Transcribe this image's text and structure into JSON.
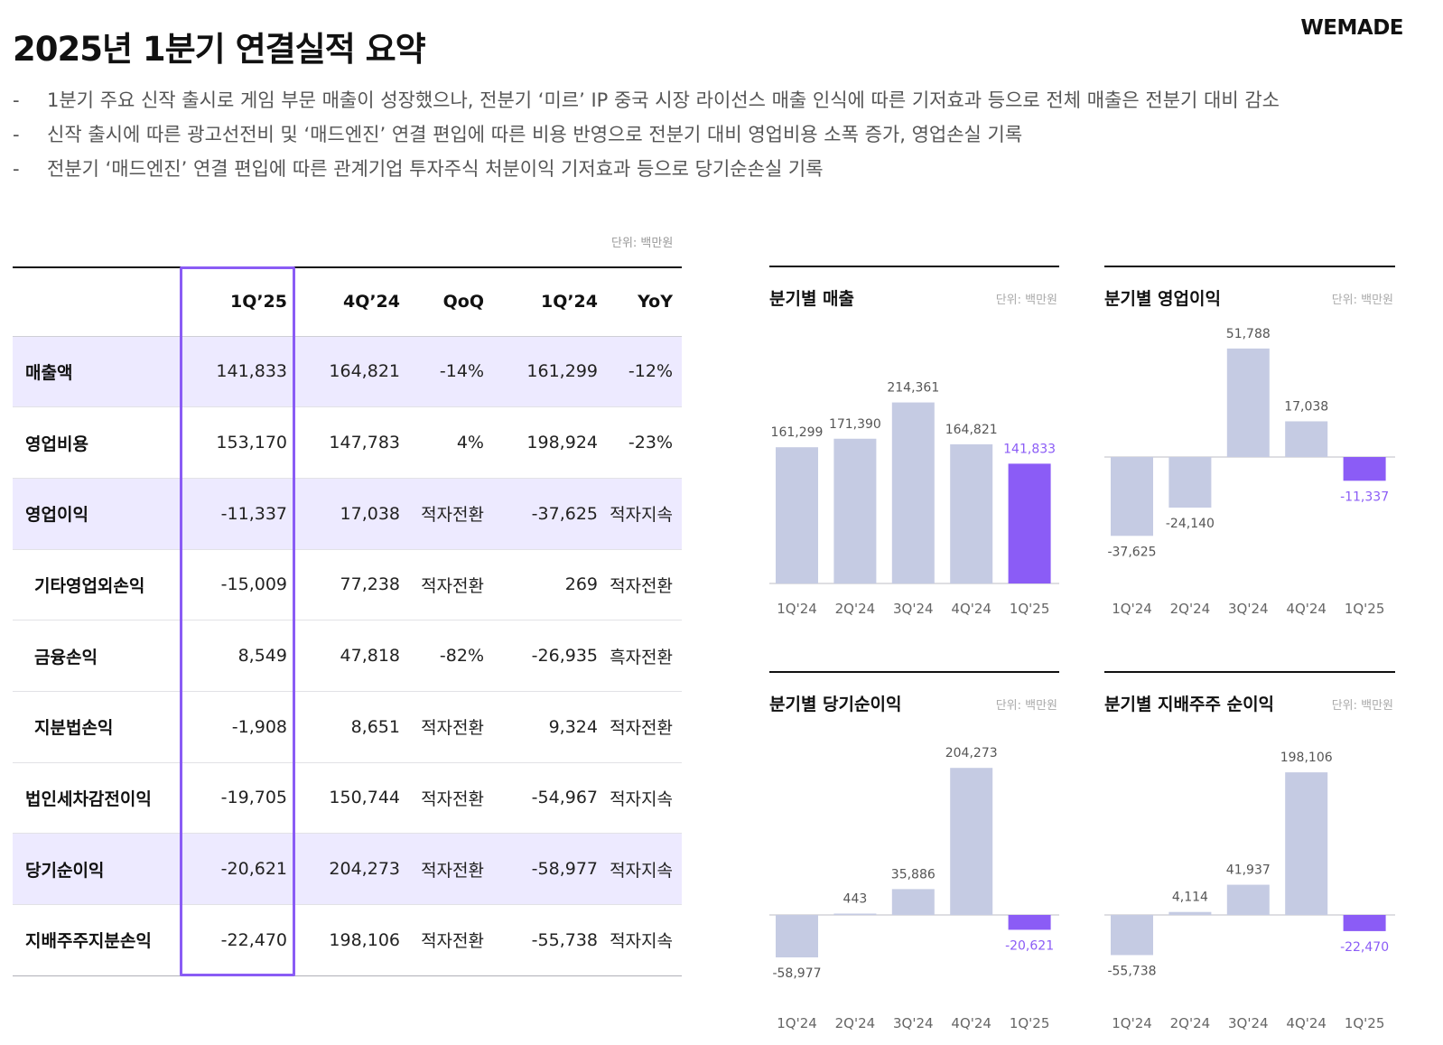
{
  "header": {
    "title": "2025년 1분기 연결실적 요약",
    "logo": "WEMADE"
  },
  "bullets": [
    "1분기 주요 신작 출시로 게임 부문 매출이 성장했으나, 전분기 ‘미르’ IP 중국 시장 라이선스 매출 인식에 따른 기저효과 등으로 전체 매출은 전분기 대비 감소",
    "신작 출시에 따른 광고선전비 및 ‘매드엔진’ 연결 편입에 따른 비용 반영으로 전분기 대비 영업비용 소폭 증가, 영업손실 기록",
    "전분기 ‘매드엔진’ 연결 편입에 따른 관계기업 투자주식 처분이익 기저효과 등으로 당기순손실 기록"
  ],
  "bullet_marker": "-",
  "table": {
    "unit": "단위: 백만원",
    "columns": [
      "",
      "1Q’25",
      "4Q’24",
      "QoQ",
      "1Q’24",
      "YoY"
    ],
    "rows": [
      {
        "label": "매출액",
        "values": [
          "141,833",
          "164,821",
          "-14%",
          "161,299",
          "-12%"
        ]
      },
      {
        "label": "영업비용",
        "values": [
          "153,170",
          "147,783",
          "4%",
          "198,924",
          "-23%"
        ]
      },
      {
        "label": "영업이익",
        "values": [
          "-11,337",
          "17,038",
          "적자전환",
          "-37,625",
          "적자지속"
        ]
      },
      {
        "label": "기타영업외손익",
        "values": [
          "-15,009",
          "77,238",
          "적자전환",
          "269",
          "적자전환"
        ]
      },
      {
        "label": "금융손익",
        "values": [
          "8,549",
          "47,818",
          "-82%",
          "-26,935",
          "흑자전환"
        ]
      },
      {
        "label": "지분법손익",
        "values": [
          "-1,908",
          "8,651",
          "적자전환",
          "9,324",
          "적자전환"
        ]
      },
      {
        "label": "법인세차감전이익",
        "values": [
          "-19,705",
          "150,744",
          "적자전환",
          "-54,967",
          "적자지속"
        ]
      },
      {
        "label": "당기순이익",
        "values": [
          "-20,621",
          "204,273",
          "적자전환",
          "-58,977",
          "적자지속"
        ]
      },
      {
        "label": "지배주주지분손익",
        "values": [
          "-22,470",
          "198,106",
          "적자전환",
          "-55,738",
          "적자지속"
        ]
      }
    ]
  },
  "colors": {
    "bar_default": "#c5cbe3",
    "bar_highlight": "#8b5cf6",
    "label_highlight": "#8b5cf6",
    "row_highlight": "#edeaff",
    "column_highlight_border": "#8a5cf5"
  },
  "chart_data": [
    {
      "type": "bar",
      "title": "분기별 매출",
      "unit": "단위: 백만원",
      "categories": [
        "1Q'24",
        "2Q'24",
        "3Q'24",
        "4Q'24",
        "1Q'25"
      ],
      "values": [
        161299,
        171390,
        214361,
        164821,
        141833
      ],
      "labels": [
        "161,299",
        "171,390",
        "214,361",
        "164,821",
        "141,833"
      ],
      "highlight_index": 4
    },
    {
      "type": "bar",
      "title": "분기별 영업이익",
      "unit": "단위: 백만원",
      "categories": [
        "1Q'24",
        "2Q'24",
        "3Q'24",
        "4Q'24",
        "1Q'25"
      ],
      "values": [
        -37625,
        -24140,
        51788,
        17038,
        -11337
      ],
      "labels": [
        "-37,625",
        "-24,140",
        "51,788",
        "17,038",
        "-11,337"
      ],
      "highlight_index": 4
    },
    {
      "type": "bar",
      "title": "분기별 당기순이익",
      "unit": "단위: 백만원",
      "categories": [
        "1Q'24",
        "2Q'24",
        "3Q'24",
        "4Q'24",
        "1Q'25"
      ],
      "values": [
        -58977,
        443,
        35886,
        204273,
        -20621
      ],
      "labels": [
        "-58,977",
        "443",
        "35,886",
        "204,273",
        "-20,621"
      ],
      "highlight_index": 4
    },
    {
      "type": "bar",
      "title": "분기별 지배주주 순이익",
      "unit": "단위: 백만원",
      "categories": [
        "1Q'24",
        "2Q'24",
        "3Q'24",
        "4Q'24",
        "1Q'25"
      ],
      "values": [
        -55738,
        4114,
        41937,
        198106,
        -22470
      ],
      "labels": [
        "-55,738",
        "4,114",
        "41,937",
        "198,106",
        "-22,470"
      ],
      "highlight_index": 4
    }
  ]
}
